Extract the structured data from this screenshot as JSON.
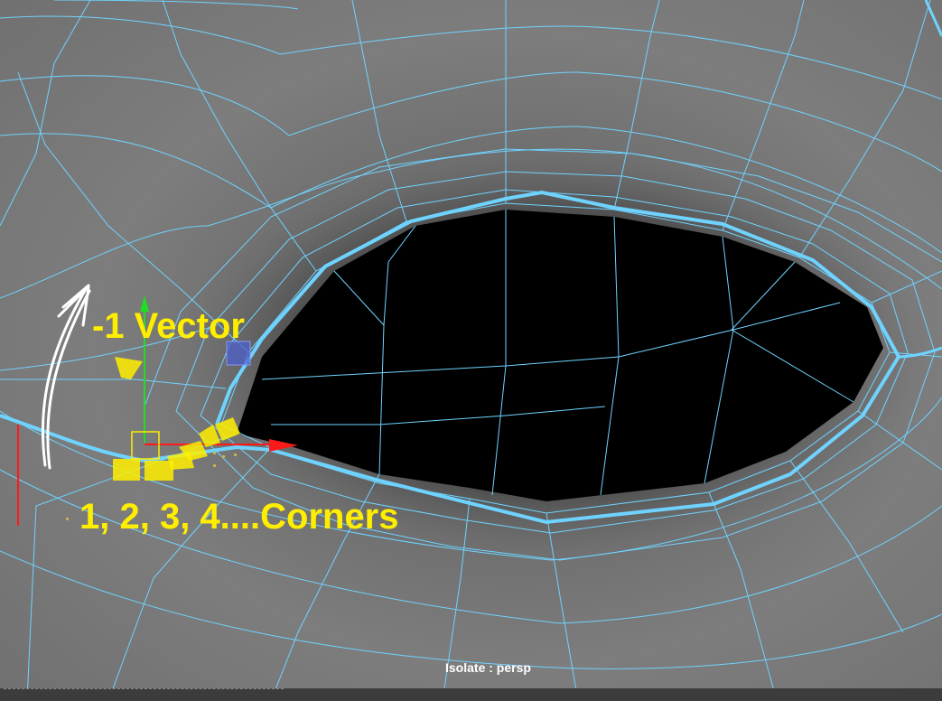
{
  "viewport": {
    "hud_label": "Isolate : persp"
  },
  "annotations": {
    "vector_label": "-1 Vector",
    "corners_label": "1, 2, 3, 4....Corners"
  },
  "colors": {
    "wire": "#6fd3ff",
    "annotation": "#ffee00",
    "manipulator_x": "#ff1a1a",
    "manipulator_y": "#22dd22",
    "selection": "#ffee00",
    "hole": "#000000"
  },
  "icons": {
    "arrow": "hand-drawn-arrow-icon",
    "move_x": "move-x-axis-icon",
    "move_y": "move-y-axis-icon"
  }
}
